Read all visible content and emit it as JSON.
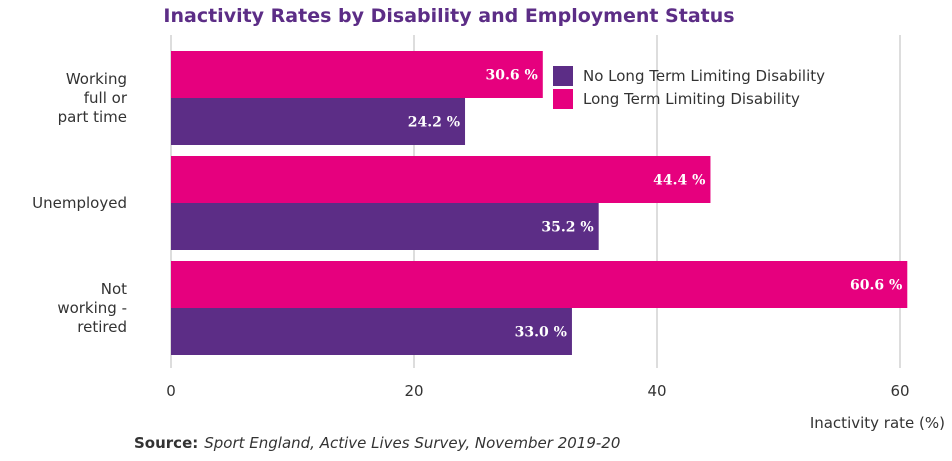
{
  "chart_data": {
    "type": "bar",
    "orientation": "horizontal",
    "title": "Inactivity Rates by Disability and Employment Status",
    "categories": [
      [
        "Working",
        "full or",
        "part time"
      ],
      [
        "Unemployed"
      ],
      [
        "Not",
        "working -",
        "retired"
      ]
    ],
    "series": [
      {
        "name": "Long Term Limiting Disability",
        "color": "#e6007e",
        "values": [
          30.6,
          44.4,
          60.6
        ],
        "labels": [
          "30.6 %",
          "44.4 %",
          "60.6 %"
        ]
      },
      {
        "name": "No Long Term Limiting Disability",
        "color": "#5c2d86",
        "values": [
          24.2,
          35.2,
          33.0
        ],
        "labels": [
          "24.2 %",
          "35.2 %",
          "33.0 %"
        ]
      }
    ],
    "legend_order": [
      1,
      0
    ],
    "legend_position": "top-right",
    "xlabel": "Inactivity rate (%)",
    "xlim": [
      0,
      60.6
    ],
    "xticks": [
      0,
      20,
      40,
      60
    ],
    "grid": true,
    "title_color": "#5c2d86"
  },
  "source": {
    "label": "Source:",
    "text": "Sport England, Active Lives Survey, November 2019-20"
  }
}
